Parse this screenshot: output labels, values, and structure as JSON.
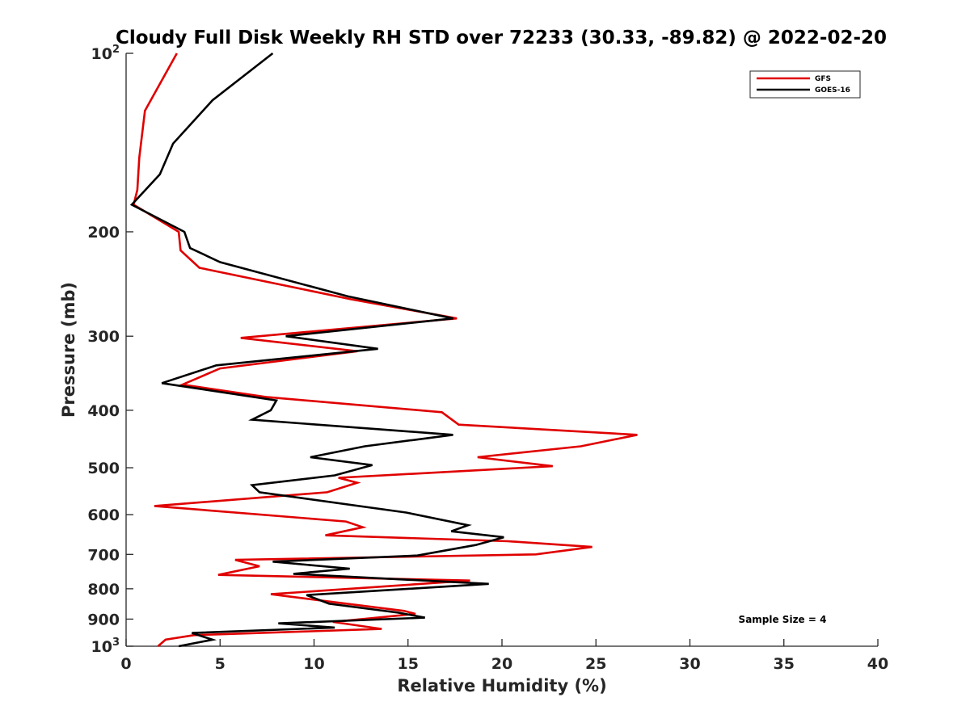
{
  "chart_data": {
    "type": "line",
    "title": "Cloudy Full Disk Weekly RH STD over 72233 (30.33, -89.82) @ 2022-02-20",
    "xlabel": "Relative Humidity (%)",
    "ylabel": "Pressure (mb)",
    "xlim": [
      0,
      40
    ],
    "ylim": [
      100,
      1000
    ],
    "yscale": "log",
    "yreversed": true,
    "x_ticks": [
      "0",
      "5",
      "10",
      "15",
      "20",
      "25",
      "30",
      "35",
      "40"
    ],
    "y_ticks": [
      {
        "value": 100,
        "label": "10",
        "sup": "2"
      },
      {
        "value": 200,
        "label": "200",
        "sup": ""
      },
      {
        "value": 300,
        "label": "300",
        "sup": ""
      },
      {
        "value": 400,
        "label": "400",
        "sup": ""
      },
      {
        "value": 500,
        "label": "500",
        "sup": ""
      },
      {
        "value": 600,
        "label": "600",
        "sup": ""
      },
      {
        "value": 700,
        "label": "700",
        "sup": ""
      },
      {
        "value": 800,
        "label": "800",
        "sup": ""
      },
      {
        "value": 900,
        "label": "900",
        "sup": ""
      },
      {
        "value": 1000,
        "label": "10",
        "sup": "3"
      }
    ],
    "legend_position": "top-right",
    "grid": false,
    "series": [
      {
        "name": "GFS",
        "color": "#e00000",
        "points": [
          [
            2.7,
            100
          ],
          [
            1.0,
            125
          ],
          [
            0.7,
            150
          ],
          [
            0.6,
            170
          ],
          [
            0.4,
            180
          ],
          [
            2.8,
            200
          ],
          [
            2.9,
            215
          ],
          [
            3.9,
            230
          ],
          [
            12.0,
            260
          ],
          [
            17.6,
            280
          ],
          [
            6.1,
            302
          ],
          [
            12.3,
            318
          ],
          [
            5.0,
            340
          ],
          [
            3.0,
            362
          ],
          [
            7.5,
            380
          ],
          [
            16.8,
            403
          ],
          [
            17.7,
            423
          ],
          [
            27.2,
            440
          ],
          [
            24.2,
            460
          ],
          [
            18.7,
            480
          ],
          [
            22.7,
            497
          ],
          [
            11.3,
            520
          ],
          [
            12.3,
            530
          ],
          [
            10.7,
            550
          ],
          [
            1.5,
            580
          ],
          [
            11.7,
            616
          ],
          [
            12.6,
            630
          ],
          [
            10.6,
            650
          ],
          [
            20.3,
            665
          ],
          [
            24.8,
            680
          ],
          [
            21.8,
            700
          ],
          [
            5.8,
            715
          ],
          [
            7.1,
            733
          ],
          [
            4.9,
            758
          ],
          [
            18.3,
            775
          ],
          [
            7.7,
            817
          ],
          [
            9.7,
            832
          ],
          [
            14.8,
            872
          ],
          [
            15.4,
            882
          ],
          [
            11.0,
            910
          ],
          [
            13.6,
            935
          ],
          [
            3.6,
            958
          ],
          [
            2.1,
            975
          ],
          [
            1.7,
            1000
          ]
        ]
      },
      {
        "name": "GOES-16",
        "color": "#000000",
        "points": [
          [
            7.8,
            100
          ],
          [
            4.6,
            120
          ],
          [
            2.5,
            142
          ],
          [
            1.8,
            160
          ],
          [
            0.3,
            180
          ],
          [
            3.1,
            200
          ],
          [
            3.4,
            213
          ],
          [
            5.0,
            225
          ],
          [
            11.8,
            257
          ],
          [
            17.4,
            280
          ],
          [
            8.5,
            300
          ],
          [
            13.4,
            315
          ],
          [
            4.8,
            336
          ],
          [
            1.9,
            360
          ],
          [
            8.0,
            385
          ],
          [
            7.7,
            400
          ],
          [
            6.7,
            415
          ],
          [
            17.4,
            440
          ],
          [
            12.7,
            460
          ],
          [
            9.8,
            480
          ],
          [
            13.1,
            495
          ],
          [
            11.1,
            515
          ],
          [
            6.7,
            535
          ],
          [
            7.1,
            550
          ],
          [
            14.9,
            595
          ],
          [
            18.2,
            625
          ],
          [
            17.3,
            640
          ],
          [
            20.1,
            655
          ],
          [
            18.6,
            675
          ],
          [
            15.5,
            703
          ],
          [
            7.8,
            720
          ],
          [
            11.9,
            740
          ],
          [
            8.9,
            755
          ],
          [
            19.3,
            785
          ],
          [
            9.6,
            820
          ],
          [
            10.8,
            848
          ],
          [
            14.5,
            878
          ],
          [
            15.9,
            895
          ],
          [
            8.1,
            915
          ],
          [
            11.1,
            930
          ],
          [
            3.5,
            950
          ],
          [
            4.6,
            975
          ],
          [
            2.8,
            1000
          ]
        ]
      }
    ],
    "annotation": "Sample Size = 4"
  }
}
